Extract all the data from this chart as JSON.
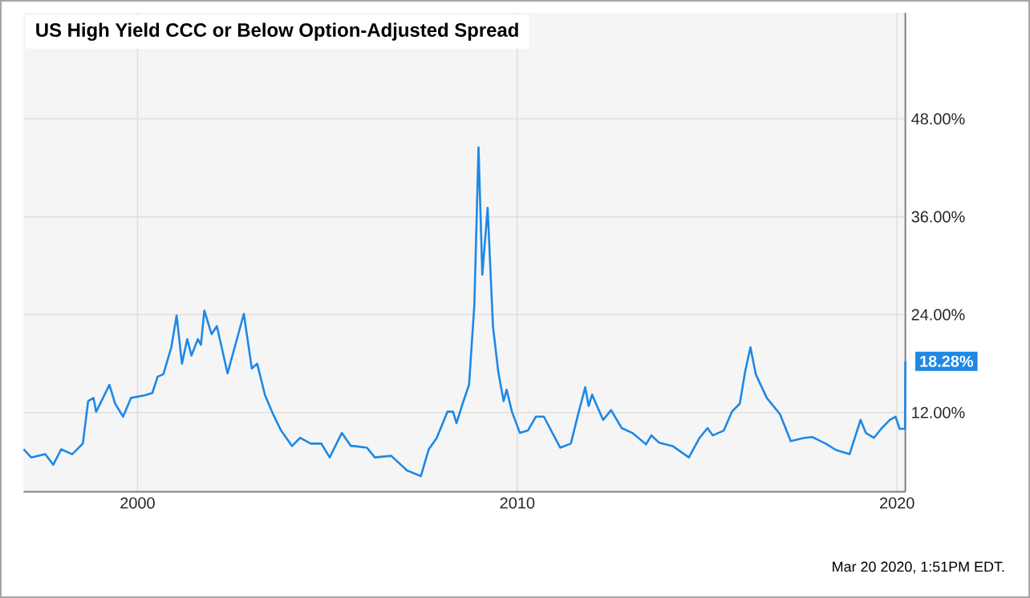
{
  "chart_data": {
    "type": "line",
    "title": "US High Yield CCC or Below Option-Adjusted Spread",
    "x": [
      1997.0,
      1997.2,
      1997.57,
      1997.78,
      1997.99,
      1998.28,
      1998.56,
      1998.7,
      1998.84,
      1998.91,
      1999.05,
      1999.26,
      1999.41,
      1999.62,
      1999.83,
      2000.18,
      2000.39,
      2000.53,
      2000.68,
      2000.89,
      2001.03,
      2001.17,
      2001.31,
      2001.42,
      2001.59,
      2001.67,
      2001.76,
      2001.95,
      2002.09,
      2002.37,
      2002.8,
      2003.01,
      2003.15,
      2003.36,
      2003.57,
      2003.78,
      2004.07,
      2004.28,
      2004.56,
      2004.84,
      2005.06,
      2005.38,
      2005.62,
      2005.69,
      2006.04,
      2006.25,
      2006.68,
      2007.1,
      2007.46,
      2007.67,
      2007.88,
      2008.16,
      2008.31,
      2008.4,
      2008.54,
      2008.73,
      2008.87,
      2008.98,
      2009.08,
      2009.22,
      2009.36,
      2009.5,
      2009.64,
      2009.72,
      2009.86,
      2010.07,
      2010.28,
      2010.49,
      2010.7,
      2011.13,
      2011.41,
      2011.62,
      2011.79,
      2011.88,
      2011.97,
      2012.26,
      2012.47,
      2012.75,
      2013.03,
      2013.29,
      2013.39,
      2013.53,
      2013.74,
      2014.09,
      2014.52,
      2014.8,
      2015.01,
      2015.15,
      2015.44,
      2015.65,
      2015.86,
      2016.0,
      2016.14,
      2016.28,
      2016.57,
      2016.92,
      2017.2,
      2017.56,
      2017.77,
      2018.12,
      2018.4,
      2018.75,
      2019.04,
      2019.18,
      2019.39,
      2019.6,
      2019.81,
      2019.96,
      2020.07,
      2020.21,
      2020.22
    ],
    "series": [
      {
        "color": "#1e88e5",
        "values": [
          7.5,
          6.5,
          6.9,
          5.6,
          7.5,
          6.9,
          8.2,
          13.4,
          13.8,
          12.1,
          13.4,
          15.4,
          13.1,
          11.5,
          13.8,
          14.1,
          14.4,
          16.4,
          16.7,
          20.0,
          23.9,
          18.0,
          21.0,
          19.0,
          21.0,
          20.3,
          24.5,
          21.6,
          22.6,
          16.8,
          24.1,
          17.4,
          18.0,
          14.1,
          11.8,
          9.8,
          7.9,
          8.9,
          8.2,
          8.2,
          6.5,
          9.5,
          7.9,
          7.9,
          7.7,
          6.5,
          6.7,
          4.9,
          4.2,
          7.5,
          8.9,
          12.1,
          12.1,
          10.7,
          12.8,
          15.4,
          25.2,
          44.5,
          28.9,
          37.1,
          22.6,
          17.0,
          13.4,
          14.8,
          12.1,
          9.5,
          9.8,
          11.5,
          11.5,
          7.7,
          8.2,
          12.1,
          15.1,
          12.8,
          14.2,
          11.1,
          12.3,
          10.1,
          9.5,
          8.5,
          8.1,
          9.2,
          8.3,
          7.9,
          6.5,
          8.9,
          10.1,
          9.2,
          9.8,
          12.1,
          13.1,
          17.0,
          20.0,
          16.7,
          13.8,
          11.8,
          8.5,
          8.9,
          9.0,
          8.2,
          7.4,
          6.9,
          11.1,
          9.5,
          8.9,
          10.1,
          11.1,
          11.5,
          10.0,
          10.0,
          18.28
        ]
      }
    ],
    "xlim": [
      1997.0,
      2020.22
    ],
    "ylim": [
      2.3,
      61
    ],
    "xticks": [
      2000,
      2010,
      2020
    ],
    "yticks": [
      {
        "value": 12,
        "label": "12.00%"
      },
      {
        "value": 24,
        "label": "24.00%"
      },
      {
        "value": 36,
        "label": "36.00%"
      },
      {
        "value": 48,
        "label": "48.00%"
      }
    ],
    "grid": true,
    "marker": "none",
    "line_style": "solid",
    "annotations": [
      {
        "text": "18.28%",
        "x": 2020.22,
        "y": 18.28
      },
      "Mar 20 2020, 1:51PM EDT."
    ]
  }
}
